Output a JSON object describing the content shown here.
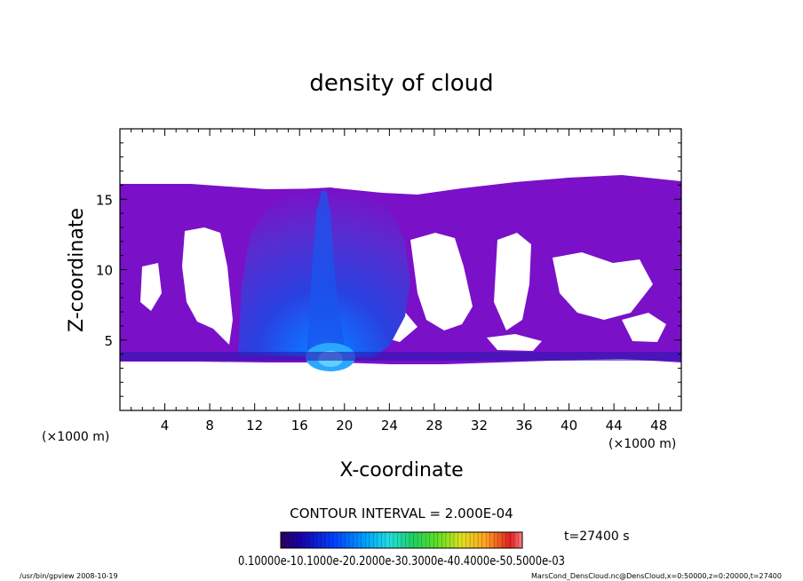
{
  "chart_data": {
    "type": "heatmap",
    "title": "density of cloud",
    "xlabel": "X-coordinate",
    "ylabel": "Z-coordinate",
    "x_unit_left": "(×1000 m)",
    "x_unit_right": "(×1000 m)",
    "xlim": [
      0,
      50
    ],
    "ylim": [
      0,
      20
    ],
    "xticks": [
      4,
      8,
      12,
      16,
      20,
      24,
      28,
      32,
      36,
      40,
      44,
      48
    ],
    "yticks": [
      5,
      10,
      15
    ],
    "contour_interval_text": "CONTOUR INTERVAL = 2.000E-04",
    "time_text": "t=27400 s",
    "colorbar_labels": [
      "0.1000e-10",
      "0.1000e-03",
      "0.2000e-03",
      "0.3000e-03",
      "0.4000e-03",
      "0.5000e-03"
    ],
    "colorbar_text": "0.10000e-10.1000e-20.2000e-30.3000e-40.4000e-50.5000e-03",
    "colorscale": [
      "#2a005a",
      "#1a00a8",
      "#0040ff",
      "#00a0ff",
      "#20e0e0",
      "#20d060",
      "#60e020",
      "#e0e020",
      "#ffa020",
      "#e02020",
      "#ff8080"
    ],
    "cloud_layer": {
      "base_km": 3.7,
      "top_km": 16.2,
      "dominant_value": 0.0001,
      "max_value": 0.0002,
      "max_location_km": {
        "x": 18.0,
        "z": 4.5
      },
      "colors": {
        "low": "#7a10c8",
        "mid": "#4030d8",
        "high": "#0060ff",
        "core": "#20a0ff"
      }
    },
    "footer_left": "/usr/bin/gpview  2008-10-19",
    "footer_right": "MarsCond_DensCloud.nc@DensCloud,x=0:50000,z=0:20000,t=27400"
  }
}
